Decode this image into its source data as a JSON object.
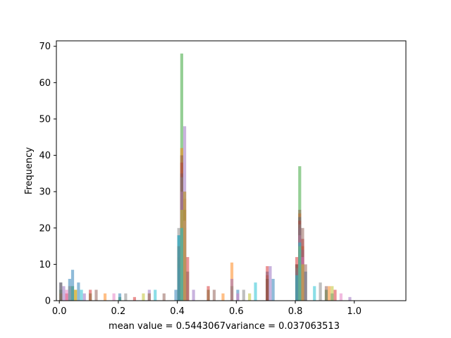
{
  "chart_data": {
    "type": "bar",
    "title": "",
    "xlabel": "mean value = 0.5443067variance = 0.037063513",
    "ylabel": "Frequency",
    "xlim": [
      -0.01,
      1.175
    ],
    "ylim": [
      0,
      71.5
    ],
    "xticks": [
      "0.0",
      "0.2",
      "0.4",
      "0.6",
      "0.8",
      "1.0"
    ],
    "yticks": [
      "0",
      "10",
      "20",
      "30",
      "40",
      "50",
      "60",
      "70"
    ],
    "grid": false,
    "legend": "none",
    "bin_width": 0.01,
    "series": [
      {
        "color": "#2ca02c",
        "opacity": 0.5,
        "x": [
          0.0,
          0.04,
          0.1,
          0.2,
          0.3,
          0.4,
          0.41,
          0.42,
          0.5,
          0.58,
          0.7,
          0.8,
          0.81,
          0.82,
          0.9
        ],
        "values": [
          3,
          4,
          2,
          1,
          2,
          10,
          68,
          20,
          3,
          4,
          6,
          8,
          37,
          12,
          3
        ]
      },
      {
        "color": "#ff7f0e",
        "opacity": 0.5,
        "x": [
          0.0,
          0.05,
          0.15,
          0.3,
          0.4,
          0.41,
          0.42,
          0.55,
          0.58,
          0.7,
          0.8,
          0.81,
          0.82,
          0.91
        ],
        "values": [
          2,
          3,
          2,
          2,
          12,
          42,
          28,
          2,
          10.5,
          7,
          10,
          24,
          15,
          4
        ]
      },
      {
        "color": "#1f77b4",
        "opacity": 0.5,
        "x": [
          0.0,
          0.03,
          0.04,
          0.06,
          0.2,
          0.39,
          0.4,
          0.41,
          0.42,
          0.6,
          0.7,
          0.72,
          0.8,
          0.81,
          0.83,
          0.92
        ],
        "values": [
          5,
          6,
          8.5,
          5,
          2,
          3,
          18,
          35,
          22,
          3,
          8,
          6,
          10,
          23,
          8,
          2
        ]
      },
      {
        "color": "#d62728",
        "opacity": 0.5,
        "x": [
          0.02,
          0.1,
          0.25,
          0.4,
          0.41,
          0.42,
          0.43,
          0.5,
          0.7,
          0.8,
          0.81,
          0.82,
          0.93
        ],
        "values": [
          2,
          3,
          1,
          15,
          38,
          30,
          12,
          4,
          9.5,
          12,
          22,
          17,
          3
        ]
      },
      {
        "color": "#9467bd",
        "opacity": 0.5,
        "x": [
          0.01,
          0.08,
          0.3,
          0.4,
          0.41,
          0.42,
          0.45,
          0.58,
          0.71,
          0.8,
          0.81,
          0.82,
          0.98
        ],
        "values": [
          4,
          2,
          3,
          9,
          30,
          48,
          3,
          6,
          9.5,
          8,
          20,
          14,
          1
        ]
      },
      {
        "color": "#8c564b",
        "opacity": 0.5,
        "x": [
          0.0,
          0.12,
          0.35,
          0.4,
          0.41,
          0.42,
          0.43,
          0.52,
          0.7,
          0.8,
          0.81,
          0.82,
          0.83,
          0.9
        ],
        "values": [
          5,
          3,
          2,
          15,
          40,
          25,
          8,
          3,
          6,
          10,
          25,
          20,
          10,
          4
        ]
      },
      {
        "color": "#e377c2",
        "opacity": 0.5,
        "x": [
          0.02,
          0.18,
          0.41,
          0.42,
          0.6,
          0.81,
          0.82,
          0.95
        ],
        "values": [
          3,
          2,
          30,
          22,
          2,
          18,
          12,
          2
        ]
      },
      {
        "color": "#7f7f7f",
        "opacity": 0.5,
        "x": [
          0.03,
          0.22,
          0.4,
          0.41,
          0.62,
          0.8,
          0.81,
          0.88
        ],
        "values": [
          4,
          2,
          20,
          34,
          3,
          9,
          21,
          5
        ]
      },
      {
        "color": "#bcbd22",
        "opacity": 0.5,
        "x": [
          0.05,
          0.28,
          0.41,
          0.42,
          0.64,
          0.81,
          0.82,
          0.92
        ],
        "values": [
          3,
          2,
          25,
          30,
          2,
          15,
          10,
          4
        ]
      },
      {
        "color": "#17becf",
        "opacity": 0.5,
        "x": [
          0.07,
          0.32,
          0.4,
          0.41,
          0.66,
          0.8,
          0.81,
          0.86
        ],
        "values": [
          3,
          3,
          18,
          20,
          5,
          7,
          16,
          4
        ]
      }
    ]
  }
}
